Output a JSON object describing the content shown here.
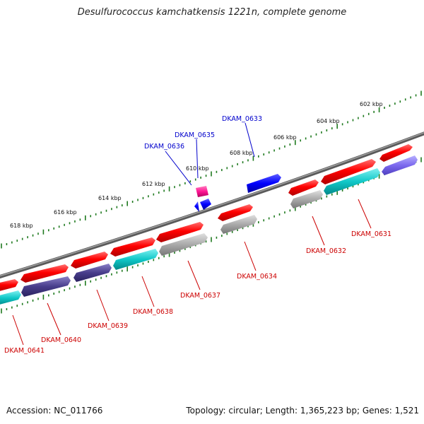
{
  "title": "Desulfurococcus kamchatkensis 1221n, complete genome",
  "footer": {
    "accession": "Accession: NC_011766",
    "summary": "Topology: circular; Length: 1,365,223 bp; Genes: 1,521"
  },
  "colors": {
    "backbone": "#777777",
    "ticks": "#1f7a1f",
    "gene_red": "#ff0000",
    "gene_gray": "#aaaaaa",
    "gene_cyan": "#10c8c8",
    "gene_navy": "#483d8b",
    "gene_lavender": "#7b68ee",
    "gene_blue": "#0000ff",
    "gene_magenta": "#ff1493",
    "label_blue": "#0000cc",
    "label_red": "#cc0000"
  },
  "scale_labels": [
    "602 kbp",
    "604 kbp",
    "606 kbp",
    "608 kbp",
    "610 kbp",
    "612 kbp",
    "614 kbp",
    "616 kbp",
    "618 kbp"
  ],
  "gene_labels_above": [
    "DKAM_0633",
    "DKAM_0635",
    "DKAM_0636"
  ],
  "gene_labels_below": [
    "DKAM_0631",
    "DKAM_0632",
    "DKAM_0634",
    "DKAM_0637",
    "DKAM_0638",
    "DKAM_0639",
    "DKAM_0640",
    "DKAM_0641"
  ]
}
